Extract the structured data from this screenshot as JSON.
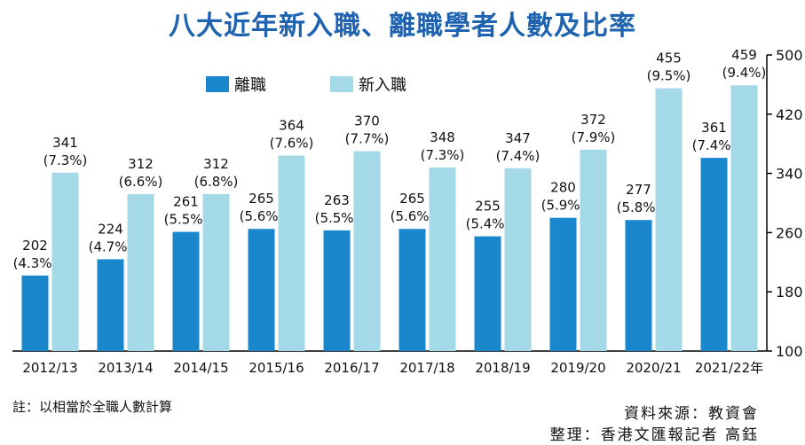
{
  "title": "八大近年新入職、離職學者人數及比率",
  "colors": {
    "title": "#1f63b0",
    "leave": "#1a86cc",
    "new": "#a4d9e8"
  },
  "chart_data": {
    "type": "bar",
    "categories": [
      "2012/13",
      "2013/14",
      "2014/15",
      "2015/16",
      "2016/17",
      "2017/18",
      "2018/19",
      "2019/20",
      "2020/21",
      "2021/22年"
    ],
    "series": [
      {
        "name": "離職",
        "values": [
          202,
          224,
          261,
          265,
          263,
          265,
          255,
          280,
          277,
          361
        ],
        "rates": [
          "(4.3%)",
          "(4.7%)",
          "(5.5%)",
          "(5.6%)",
          "(5.5%)",
          "(5.6%)",
          "(5.4%)",
          "(5.9%)",
          "(5.8%)",
          "(7.4%)"
        ]
      },
      {
        "name": "新入職",
        "values": [
          341,
          312,
          312,
          364,
          370,
          348,
          347,
          372,
          455,
          459
        ],
        "rates": [
          "(7.3%)",
          "(6.6%)",
          "(6.8%)",
          "(7.6%)",
          "(7.7%)",
          "(7.3%)",
          "(7.4%)",
          "(7.9%)",
          "(9.5%)",
          "(9.4%)"
        ]
      }
    ],
    "yticks": [
      100,
      180,
      260,
      340,
      420,
      500
    ],
    "ylim": [
      100,
      500
    ],
    "legend_position": "top-left"
  },
  "footnote": "註：以相當於全職人數計算",
  "source": "資料來源：教資會",
  "editor": "整理：香港文匯報記者 高鈺"
}
